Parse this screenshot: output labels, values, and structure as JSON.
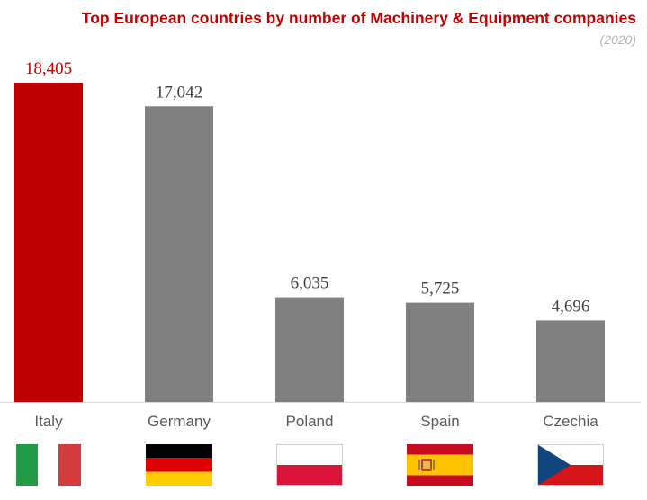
{
  "chart_data": {
    "type": "bar",
    "title": "Top European countries by number of Machinery & Equipment companies",
    "subtitle": "(2020)",
    "categories": [
      "Italy",
      "Germany",
      "Poland",
      "Spain",
      "Czechia"
    ],
    "values": [
      18405,
      17042,
      6035,
      5725,
      4696
    ],
    "value_labels": [
      "18,405",
      "17,042",
      "6,035",
      "5,725",
      "4,696"
    ],
    "bar_colors": [
      "#c00000",
      "#808080",
      "#808080",
      "#808080",
      "#808080"
    ],
    "value_label_colors": [
      "#c00000",
      "#404040",
      "#404040",
      "#404040",
      "#404040"
    ],
    "flags": [
      "italy-flag",
      "germany-flag",
      "poland-flag",
      "spain-flag",
      "czechia-flag"
    ],
    "ylim": [
      0,
      18405
    ],
    "grid": false,
    "legend": "none"
  }
}
